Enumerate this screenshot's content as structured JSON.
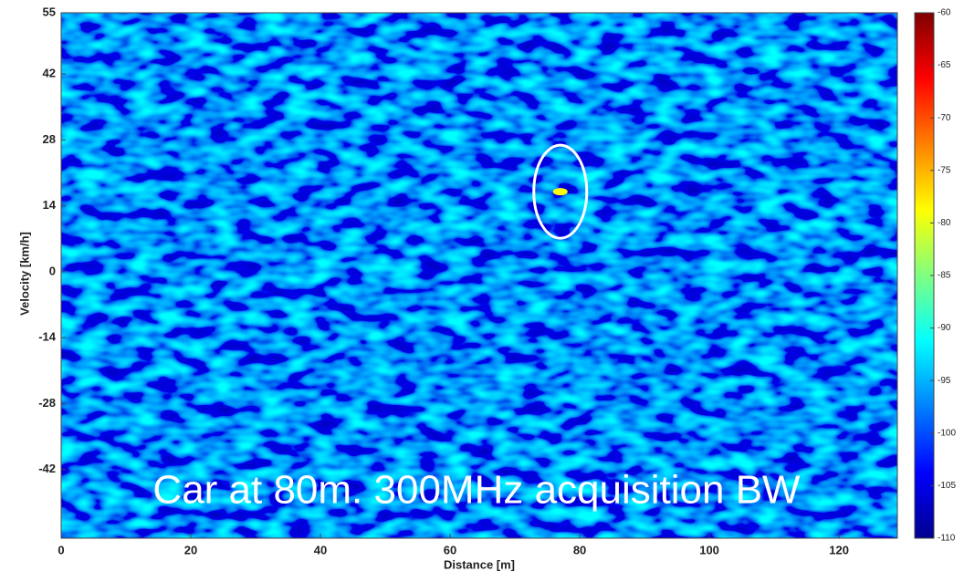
{
  "chart_data": {
    "type": "heatmap",
    "xlabel": "Distance [m]",
    "ylabel": "Velocity [km/h]",
    "xlim": [
      0,
      129
    ],
    "xticks": [
      0,
      20,
      40,
      60,
      80,
      100,
      120
    ],
    "ylim": [
      -56.6,
      55
    ],
    "yticks": [
      -42,
      -28,
      -14,
      0,
      14,
      28,
      42,
      55
    ],
    "colormap": "jet",
    "clim": [
      -110,
      -60
    ],
    "cticks": [
      -110,
      -105,
      -100,
      -95,
      -90,
      -85,
      -80,
      -75,
      -70,
      -65,
      -60
    ],
    "points": [
      {
        "x": 77,
        "y": 17,
        "value": -78
      }
    ],
    "annotation": "Car at 80m. 300MHz acquisition BW"
  }
}
